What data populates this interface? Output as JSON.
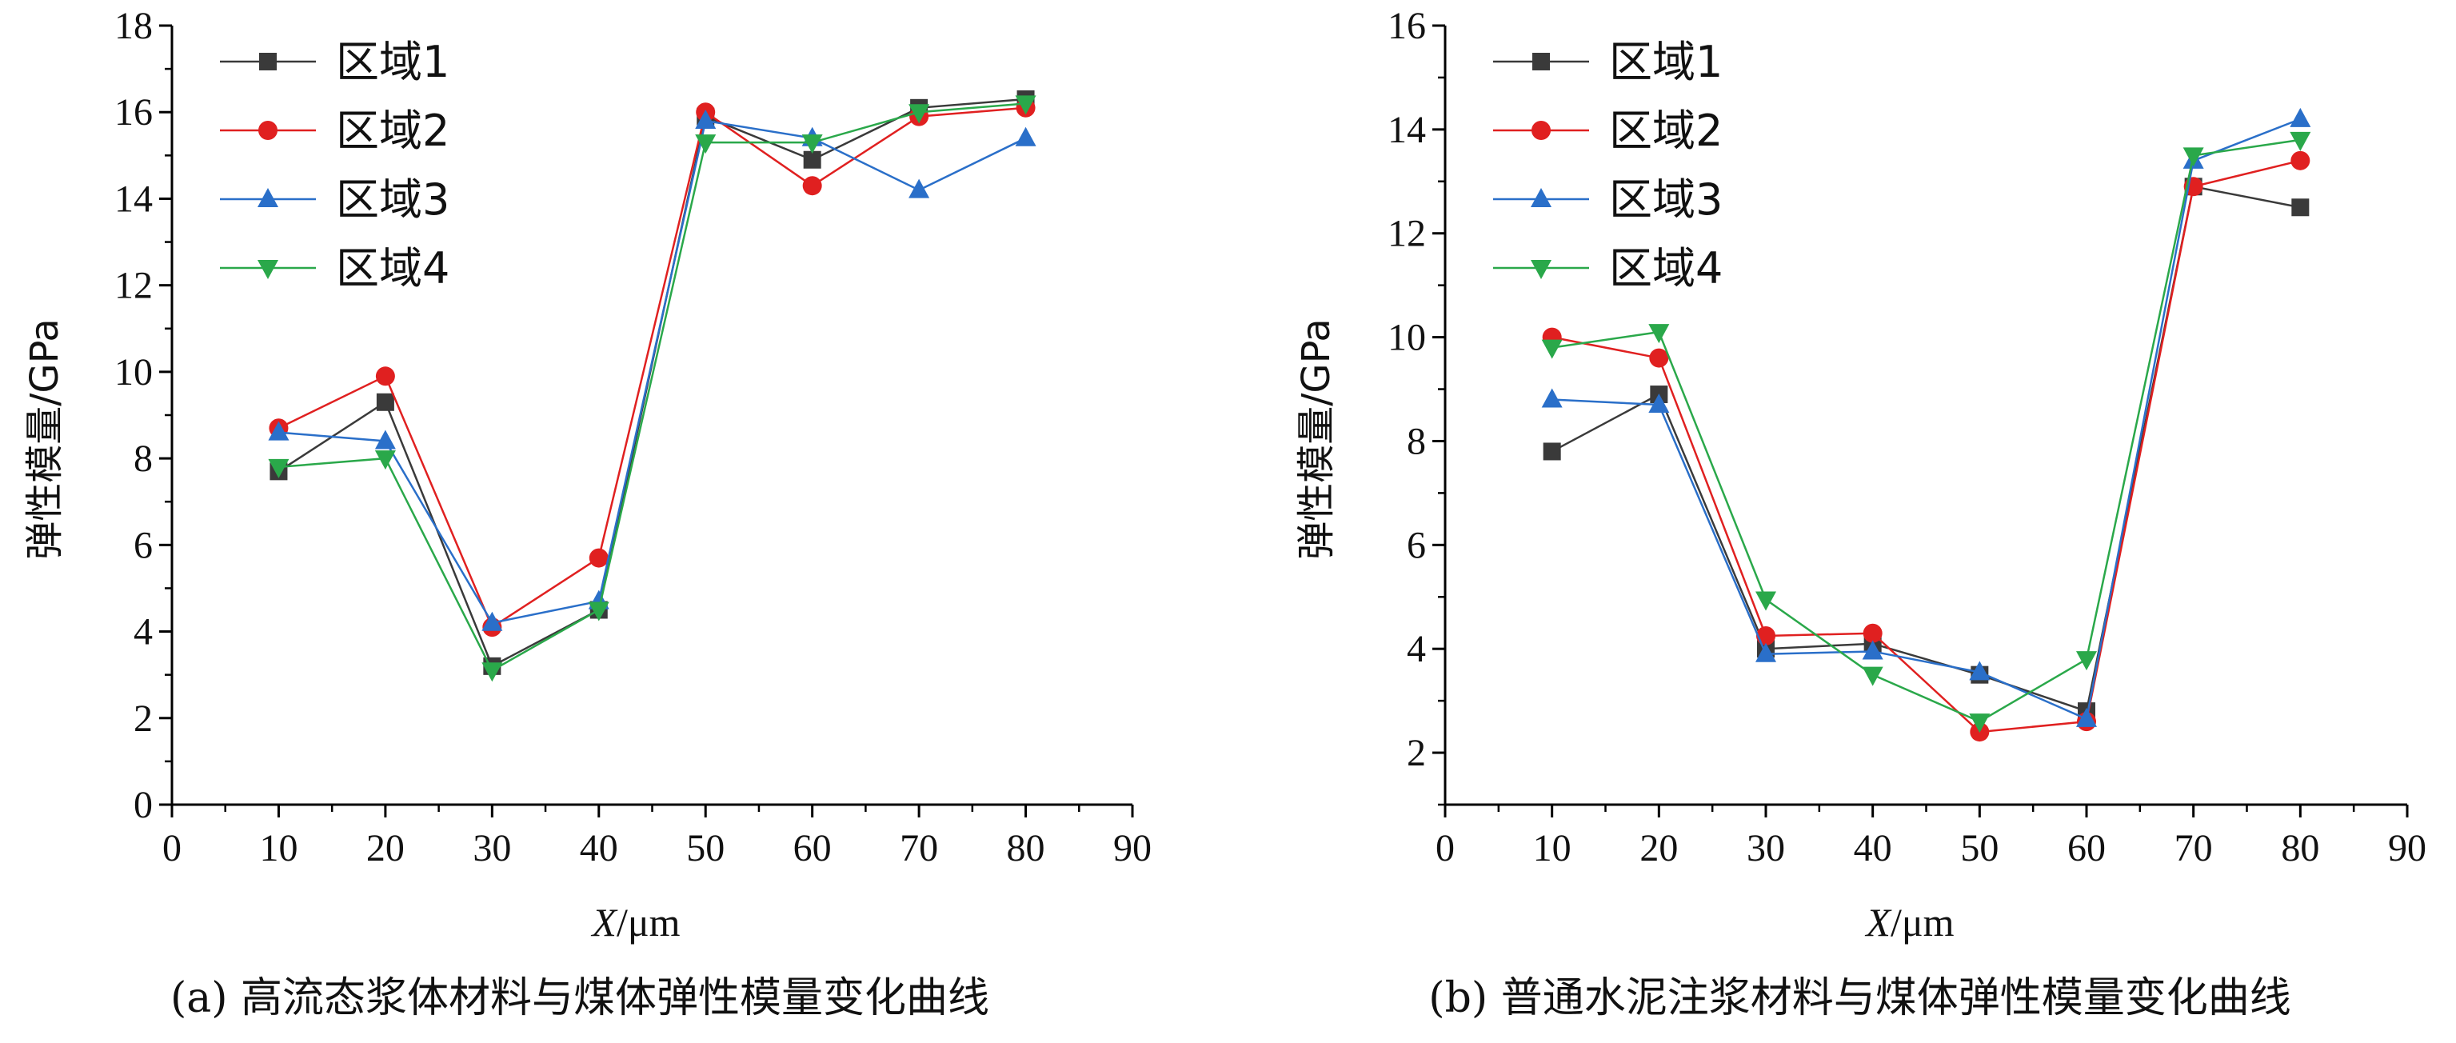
{
  "figure": {
    "caption_a": "(a) 高流态浆体材料与煤体弹性模量变化曲线",
    "caption_b": "(b) 普通水泥注浆材料与煤体弹性模量变化曲线"
  },
  "chart_data": [
    {
      "type": "line",
      "title": "",
      "xlabel_italic": "X",
      "xlabel_unit": "/μm",
      "ylabel": "弹性模量/GPa",
      "xlim": [
        0,
        90
      ],
      "ylim": [
        0,
        18
      ],
      "xticks": [
        0,
        10,
        20,
        30,
        40,
        50,
        60,
        70,
        80,
        90
      ],
      "yticks": [
        0,
        2,
        4,
        6,
        8,
        10,
        12,
        14,
        16,
        18
      ],
      "grid": false,
      "legend_position": "top-left",
      "x": [
        10,
        20,
        30,
        40,
        50,
        60,
        70,
        80
      ],
      "series": [
        {
          "name": "区域1",
          "color": "#3a3a3a",
          "marker": "square",
          "values": [
            7.7,
            9.3,
            3.2,
            4.5,
            15.9,
            14.9,
            16.1,
            16.3
          ]
        },
        {
          "name": "区域2",
          "color": "#e02020",
          "marker": "circle",
          "values": [
            8.7,
            9.9,
            4.1,
            5.7,
            16.0,
            14.3,
            15.9,
            16.1
          ]
        },
        {
          "name": "区域3",
          "color": "#2a6fc9",
          "marker": "triangle-up",
          "values": [
            8.6,
            8.4,
            4.2,
            4.7,
            15.8,
            15.4,
            14.2,
            15.4
          ]
        },
        {
          "name": "区域4",
          "color": "#2aa84a",
          "marker": "triangle-down",
          "values": [
            7.8,
            8.0,
            3.1,
            4.5,
            15.3,
            15.3,
            16.0,
            16.2
          ]
        }
      ]
    },
    {
      "type": "line",
      "title": "",
      "xlabel_italic": "X",
      "xlabel_unit": "/μm",
      "ylabel": "弹性模量/GPa",
      "xlim": [
        0,
        90
      ],
      "ylim": [
        1,
        16
      ],
      "xticks": [
        0,
        10,
        20,
        30,
        40,
        50,
        60,
        70,
        80,
        90
      ],
      "yticks": [
        2,
        4,
        6,
        8,
        10,
        12,
        14,
        16
      ],
      "grid": false,
      "legend_position": "top-left",
      "x": [
        10,
        20,
        30,
        40,
        50,
        60,
        70,
        80
      ],
      "series": [
        {
          "name": "区域1",
          "color": "#3a3a3a",
          "marker": "square",
          "values": [
            7.8,
            8.9,
            4.0,
            4.1,
            3.5,
            2.8,
            12.9,
            12.5
          ]
        },
        {
          "name": "区域2",
          "color": "#e02020",
          "marker": "circle",
          "values": [
            10.0,
            9.6,
            4.25,
            4.3,
            2.4,
            2.6,
            12.9,
            13.4
          ]
        },
        {
          "name": "区域3",
          "color": "#2a6fc9",
          "marker": "triangle-up",
          "values": [
            8.8,
            8.7,
            3.9,
            3.95,
            3.55,
            2.65,
            13.4,
            14.2
          ]
        },
        {
          "name": "区域4",
          "color": "#2aa84a",
          "marker": "triangle-down",
          "values": [
            9.8,
            10.1,
            4.95,
            3.5,
            2.6,
            3.8,
            13.5,
            13.8
          ]
        }
      ]
    }
  ]
}
